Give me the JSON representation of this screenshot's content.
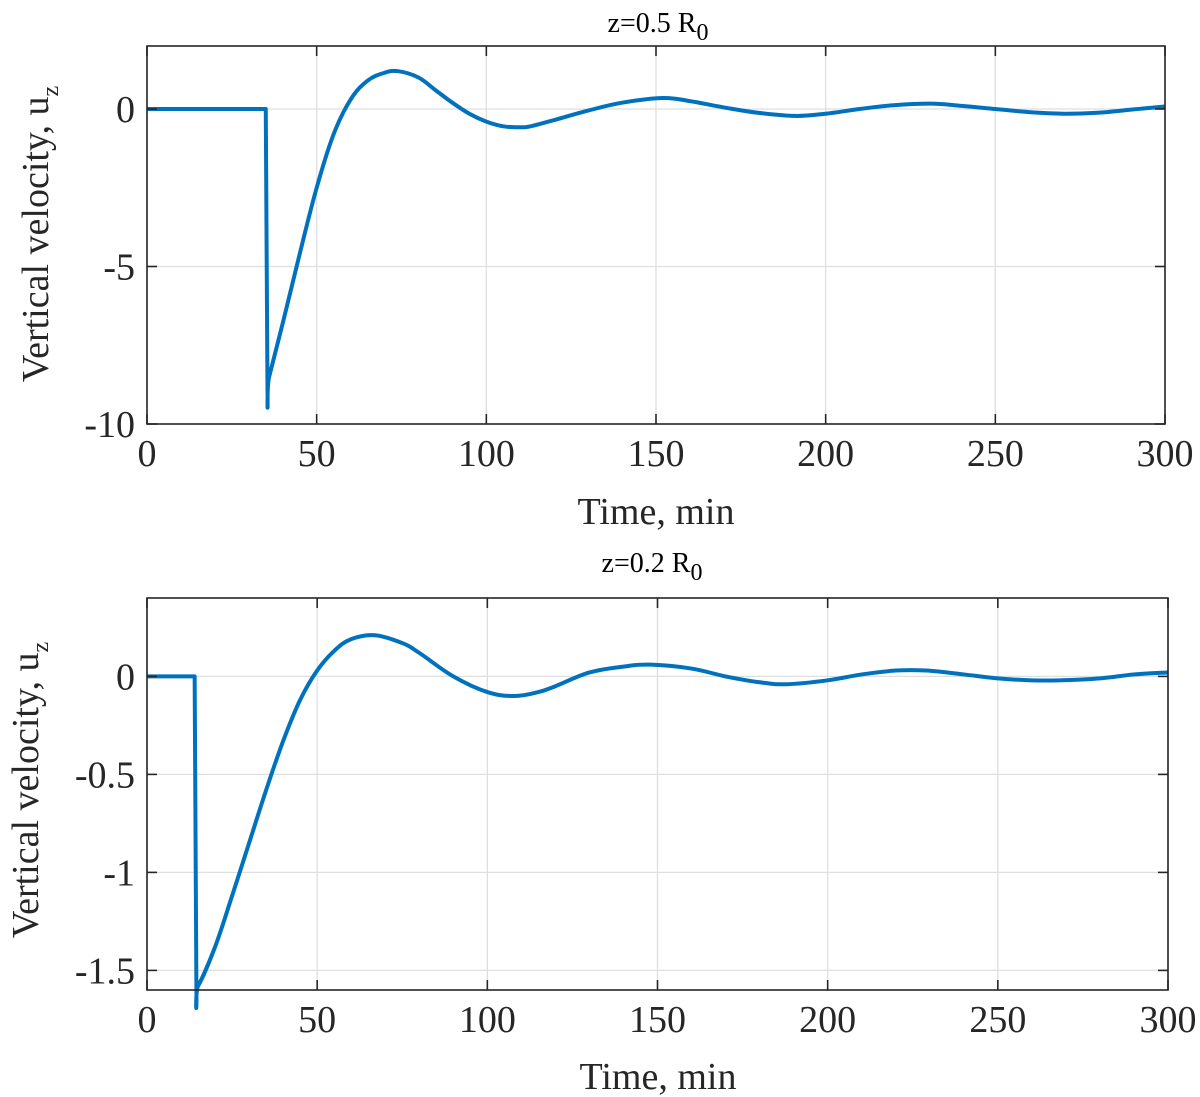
{
  "chart_data": [
    {
      "type": "line",
      "title": {
        "main": "z=0.5 R",
        "subscript": "0"
      },
      "xlabel": "Time, min",
      "ylabel": {
        "main": "Vertical velocity, u",
        "subscript": "z"
      },
      "xlim": [
        0,
        300
      ],
      "ylim": [
        -10,
        2
      ],
      "grid": true,
      "x_ticks": [
        "0",
        "50",
        "100",
        "150",
        "200",
        "250",
        "300"
      ],
      "y_ticks": [
        "0",
        "-5",
        "-10"
      ],
      "y_tick_values": [
        0,
        -5,
        -10
      ],
      "series": [
        {
          "name": "u_z",
          "color": "#0072BD",
          "x": [
            0,
            35,
            35.5,
            36,
            40,
            45,
            50,
            55,
            60,
            65,
            70,
            74,
            80,
            85,
            90,
            95,
            100,
            105,
            110,
            113,
            120,
            130,
            140,
            152,
            160,
            170,
            180,
            191,
            200,
            210,
            220,
            231,
            240,
            250,
            260,
            270,
            280,
            290,
            300
          ],
          "values": [
            0,
            0,
            -8.8,
            -8.5,
            -6.8,
            -4.6,
            -2.5,
            -0.8,
            0.3,
            0.9,
            1.15,
            1.2,
            1.0,
            0.6,
            0.2,
            -0.15,
            -0.4,
            -0.55,
            -0.58,
            -0.55,
            -0.35,
            -0.05,
            0.2,
            0.35,
            0.25,
            0.05,
            -0.12,
            -0.22,
            -0.15,
            0.0,
            0.12,
            0.17,
            0.1,
            0.0,
            -0.1,
            -0.15,
            -0.12,
            -0.02,
            0.08
          ]
        }
      ]
    },
    {
      "type": "line",
      "title": {
        "main": "z=0.2 R",
        "subscript": "0"
      },
      "xlabel": "Time, min",
      "ylabel": {
        "main": "Vertical velocity, u",
        "subscript": "z"
      },
      "xlim": [
        0,
        300
      ],
      "ylim": [
        -1.6,
        0.4
      ],
      "grid": true,
      "x_ticks": [
        "0",
        "50",
        "100",
        "150",
        "200",
        "250",
        "300"
      ],
      "y_ticks": [
        "0",
        "-0.5",
        "-1",
        "-1.5"
      ],
      "y_tick_values": [
        0,
        -0.5,
        -1,
        -1.5
      ],
      "series": [
        {
          "name": "u_z",
          "color": "#0072BD",
          "x": [
            0,
            14,
            14.5,
            15,
            20,
            25,
            30,
            35,
            40,
            45,
            50,
            55,
            60,
            67,
            75,
            80,
            90,
            100,
            108,
            115,
            120,
            130,
            140,
            148,
            160,
            170,
            180,
            188,
            200,
            210,
            220,
            229,
            240,
            250,
            260,
            268,
            280,
            290,
            300
          ],
          "values": [
            0,
            0,
            -1.55,
            -1.58,
            -1.38,
            -1.12,
            -0.85,
            -0.58,
            -0.33,
            -0.12,
            0.03,
            0.13,
            0.19,
            0.21,
            0.17,
            0.12,
            0.0,
            -0.08,
            -0.1,
            -0.08,
            -0.05,
            0.02,
            0.05,
            0.06,
            0.04,
            0.0,
            -0.03,
            -0.04,
            -0.02,
            0.01,
            0.03,
            0.03,
            0.01,
            -0.01,
            -0.02,
            -0.02,
            -0.01,
            0.01,
            0.02
          ]
        }
      ]
    }
  ]
}
